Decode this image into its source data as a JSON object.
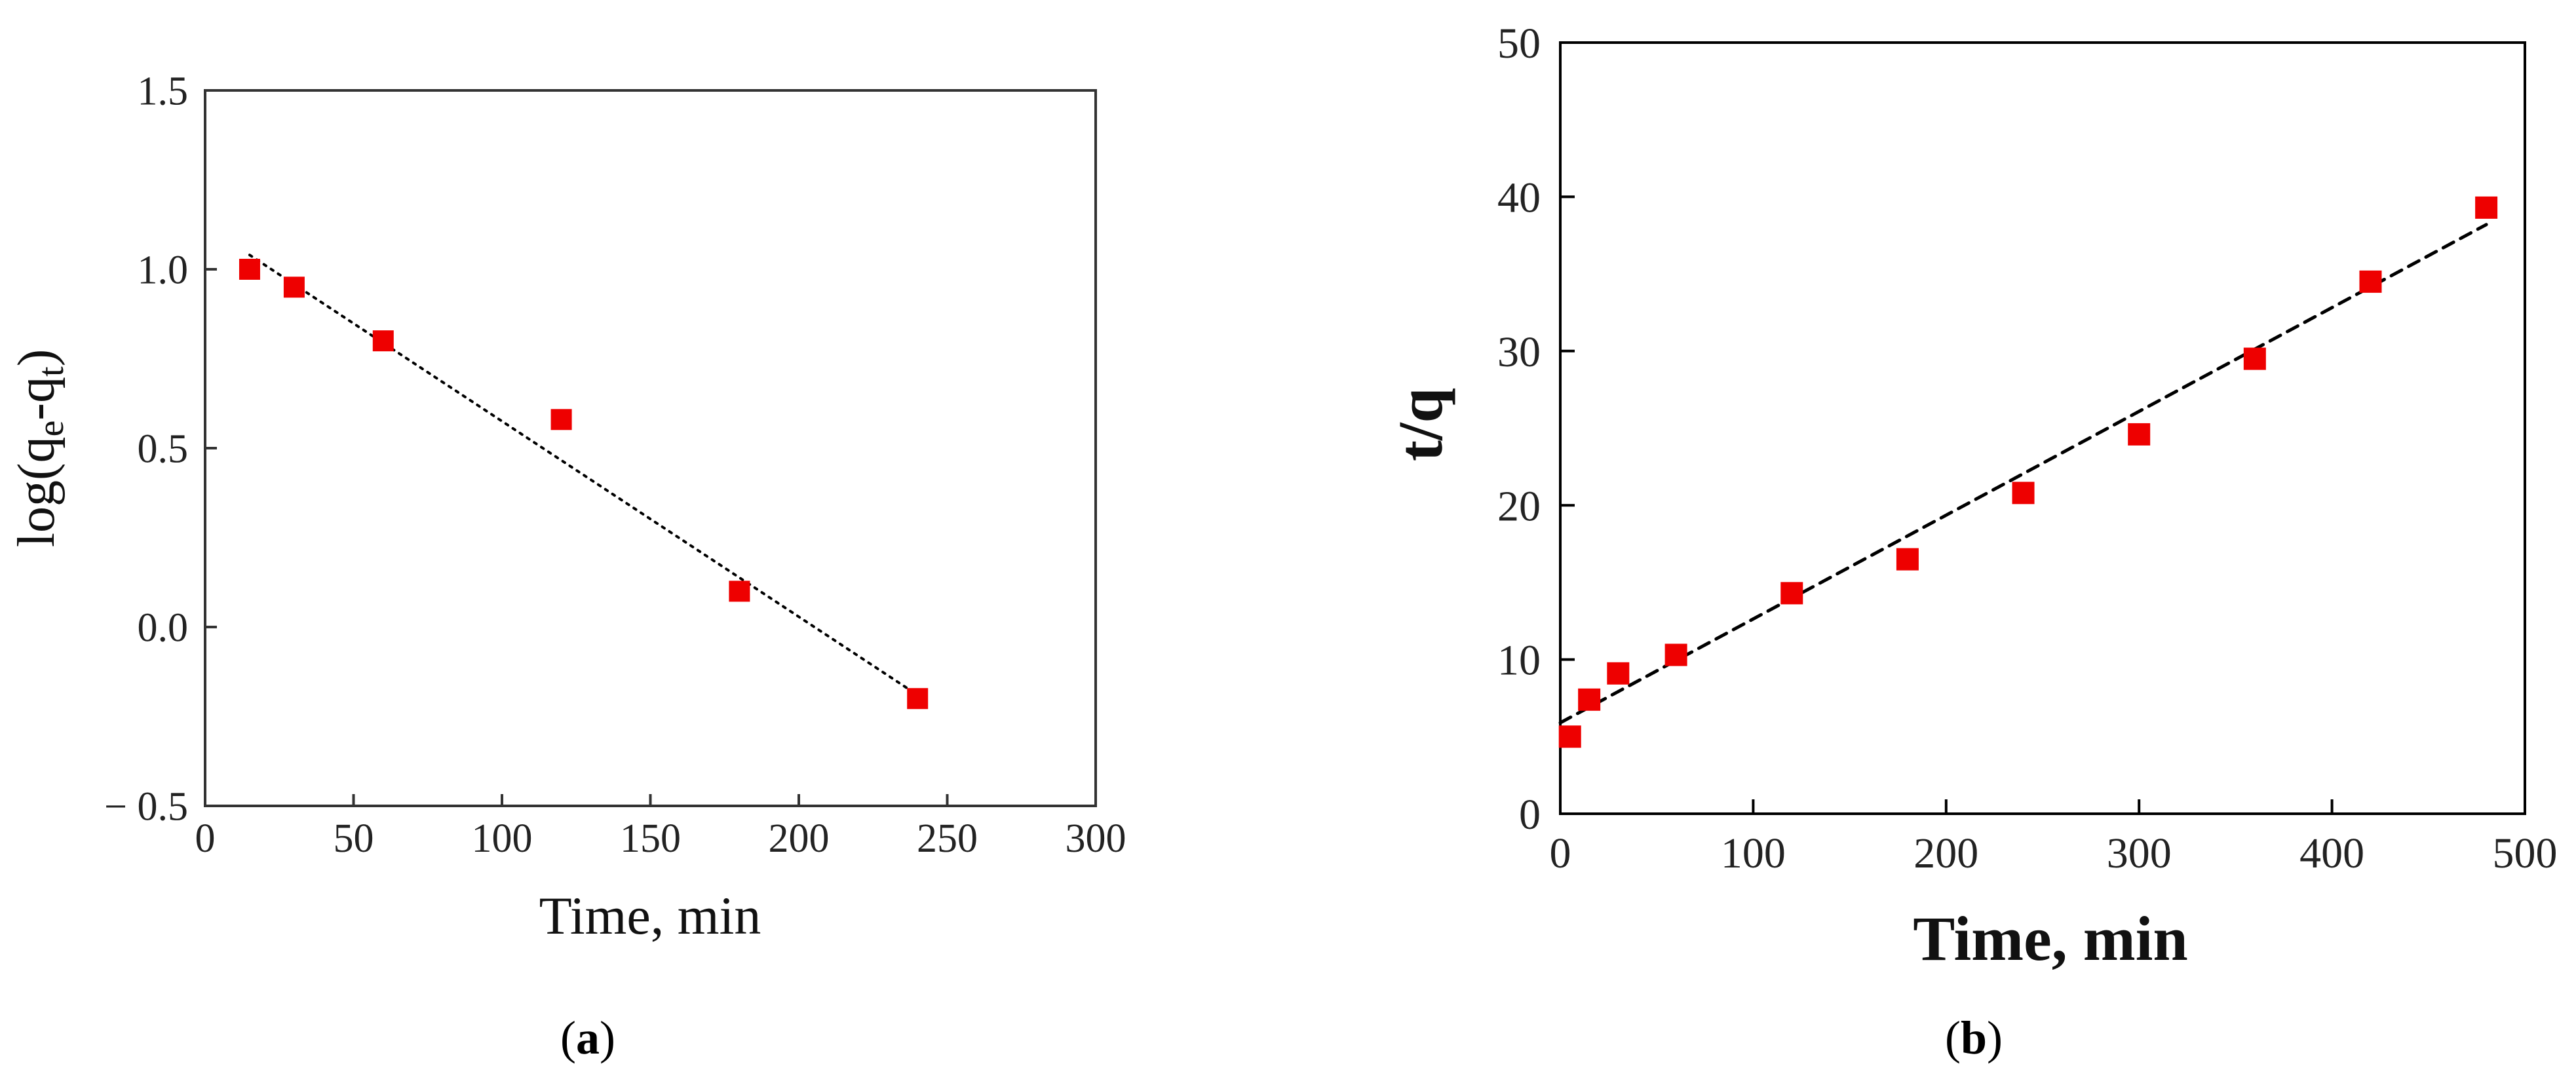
{
  "chart_data": [
    {
      "panel_label": "a",
      "type": "scatter",
      "xlabel": "Time, min",
      "ylabel_prefix": "log(q",
      "ylabel_sub1": "e",
      "ylabel_mid": "-q",
      "ylabel_sub2": "t",
      "ylabel_suffix": ")",
      "xlim": [
        0,
        300
      ],
      "ylim": [
        -0.5,
        1.5
      ],
      "xticks": [
        0,
        50,
        100,
        150,
        200,
        250,
        300
      ],
      "xtick_labels": [
        "0",
        "50",
        "100",
        "150",
        "200",
        "250",
        "300"
      ],
      "yticks": [
        -0.5,
        0.0,
        0.5,
        1.0,
        1.5
      ],
      "ytick_labels": [
        "− 0.5",
        "0.0",
        "0.5",
        "1.0",
        "1.5"
      ],
      "grid": false,
      "points": {
        "x": [
          15,
          30,
          60,
          120,
          180,
          240
        ],
        "y": [
          1.0,
          0.95,
          0.8,
          0.58,
          0.1,
          -0.2
        ],
        "color": "#ee0000",
        "marker": "square"
      },
      "fit_line": {
        "x": [
          15,
          240
        ],
        "y": [
          1.04,
          -0.19
        ],
        "style": "dotted",
        "color": "#000000"
      }
    },
    {
      "panel_label": "b",
      "type": "scatter",
      "xlabel": "Time, min",
      "ylabel": "t/q",
      "xlim": [
        0,
        500
      ],
      "ylim": [
        0,
        50
      ],
      "xticks": [
        0,
        100,
        200,
        300,
        400,
        500
      ],
      "xtick_labels": [
        "0",
        "100",
        "200",
        "300",
        "400",
        "500"
      ],
      "yticks": [
        0,
        10,
        20,
        30,
        40,
        50
      ],
      "ytick_labels": [
        "0",
        "10",
        "20",
        "30",
        "40",
        "50"
      ],
      "grid": false,
      "points": {
        "x": [
          5,
          15,
          30,
          60,
          120,
          180,
          240,
          300,
          360,
          420,
          480
        ],
        "y": [
          5.0,
          7.4,
          9.1,
          10.3,
          14.3,
          16.5,
          20.8,
          24.6,
          29.5,
          34.5,
          39.3
        ],
        "color": "#ee0000",
        "marker": "square"
      },
      "fit_line": {
        "x": [
          0,
          480
        ],
        "y": [
          5.9,
          38.2
        ],
        "style": "dashed",
        "color": "#000000"
      }
    }
  ]
}
